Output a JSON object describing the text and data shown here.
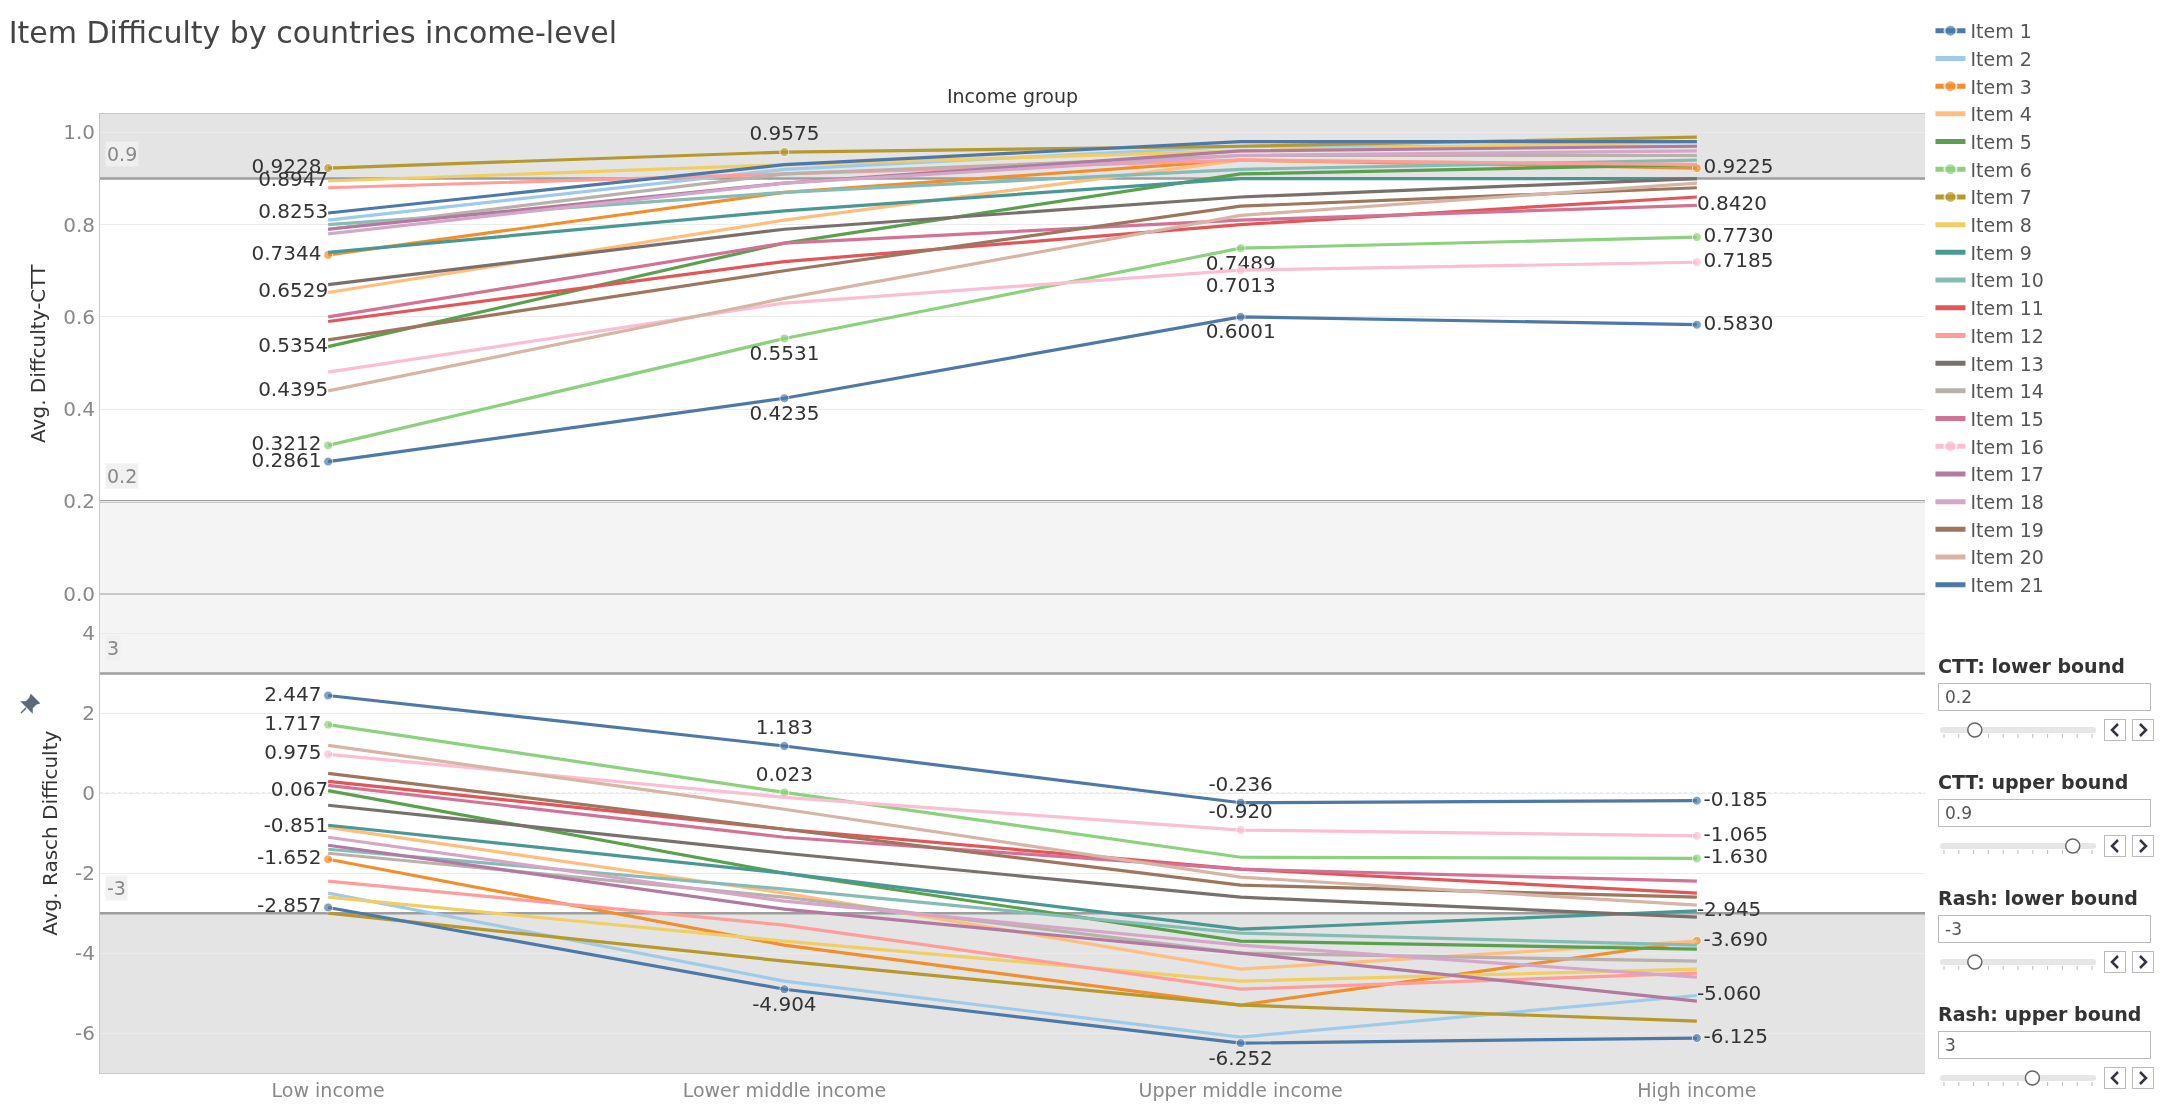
{
  "chart_data": [
    {
      "type": "line",
      "title": "Item Difficulty by countries income-level",
      "xlabel": "Income group",
      "ylabel": "Avg. Diffculty-CTT",
      "categories": [
        "Low income",
        "Lower middle income",
        "Upper middle income",
        "High income"
      ],
      "ylim": [
        0,
        1.04
      ],
      "yticks": [
        {
          "value": 0,
          "label": "0.0"
        },
        {
          "value": 0.2,
          "label": "0.2"
        },
        {
          "value": 0.4,
          "label": "0.4"
        },
        {
          "value": 0.6,
          "label": "0.6"
        },
        {
          "value": 0.8,
          "label": "0.8"
        },
        {
          "value": 1,
          "label": "1.0"
        }
      ],
      "grid": "y",
      "legend": "right",
      "tick_labels": "y",
      "annotations": [
        "CTT: lower bound",
        "CTT: upper bound"
      ],
      "ref_lines": [
        {
          "axis": "y",
          "value": 0.2,
          "label": "0.2"
        },
        {
          "axis": "y",
          "value": 0.9,
          "label": "0.9"
        }
      ],
      "bands": [
        {
          "axis": "y",
          "from": 0.9,
          "to": 1.04,
          "color": "#e4e4e4"
        },
        {
          "axis": "y",
          "from": 0,
          "to": 0.2,
          "color": "#f4f4f4"
        }
      ],
      "series": [
        {
          "name": "Item 1",
          "color": "#4e79a7",
          "marker": "circle",
          "values": [
            0.2861,
            0.4235,
            0.6001,
            0.583
          ],
          "value_labels": [
            "0.2861",
            "0.4235",
            "0.6001",
            "0.5830"
          ]
        },
        {
          "name": "Item 2",
          "color": "#a0cbe8",
          "values": [
            0.81,
            0.92,
            0.97,
            0.97
          ]
        },
        {
          "name": "Item 3",
          "color": "#f28e2b",
          "marker": "circle",
          "values": [
            0.7344,
            0.87,
            0.94,
            0.9225
          ],
          "value_labels": [
            "0.7344",
            null,
            null,
            "0.9225"
          ]
        },
        {
          "name": "Item 4",
          "color": "#ffbe7d",
          "values": [
            0.6529,
            0.81,
            0.94,
            0.93
          ],
          "value_labels": [
            "0.6529",
            null,
            null,
            null
          ]
        },
        {
          "name": "Item 5",
          "color": "#59a14f",
          "values": [
            0.5354,
            0.76,
            0.91,
            0.93
          ],
          "value_labels": [
            "0.5354",
            null,
            null,
            null
          ]
        },
        {
          "name": "Item 6",
          "color": "#8cd17d",
          "marker": "circle",
          "values": [
            0.3212,
            0.5531,
            0.7489,
            0.773
          ],
          "value_labels": [
            "0.3212",
            "0.5531",
            "0.7489",
            "0.7730"
          ]
        },
        {
          "name": "Item 7",
          "color": "#b6992d",
          "marker": "circle",
          "values": [
            0.9228,
            0.9575,
            0.97,
            0.99
          ],
          "value_labels": [
            "0.9228",
            "0.9575",
            null,
            null
          ]
        },
        {
          "name": "Item 8",
          "color": "#f1ce63",
          "values": [
            0.8947,
            0.93,
            0.96,
            0.98
          ],
          "value_labels": [
            "0.8947",
            null,
            null,
            null
          ]
        },
        {
          "name": "Item 9",
          "color": "#499894",
          "values": [
            0.74,
            0.83,
            0.9,
            0.9
          ]
        },
        {
          "name": "Item 10",
          "color": "#86bcb6",
          "values": [
            0.8,
            0.87,
            0.92,
            0.94
          ]
        },
        {
          "name": "Item 11",
          "color": "#e15759",
          "values": [
            0.59,
            0.72,
            0.8,
            0.86
          ]
        },
        {
          "name": "Item 12",
          "color": "#ff9d9a",
          "values": [
            0.88,
            0.91,
            0.94,
            0.93
          ]
        },
        {
          "name": "Item 13",
          "color": "#79706e",
          "values": [
            0.67,
            0.79,
            0.86,
            0.9
          ]
        },
        {
          "name": "Item 14",
          "color": "#bab0ac",
          "values": [
            0.79,
            0.91,
            0.95,
            0.95
          ]
        },
        {
          "name": "Item 15",
          "color": "#d37295",
          "values": [
            0.6,
            0.76,
            0.81,
            0.842
          ],
          "value_labels": [
            null,
            null,
            null,
            "0.8420"
          ]
        },
        {
          "name": "Item 16",
          "color": "#fabfd2",
          "marker": "circle",
          "values": [
            0.48,
            0.63,
            0.7013,
            0.7185
          ],
          "value_labels": [
            null,
            null,
            "0.7013",
            "0.7185"
          ]
        },
        {
          "name": "Item 17",
          "color": "#b07aa1",
          "values": [
            0.79,
            0.89,
            0.96,
            0.97
          ]
        },
        {
          "name": "Item 18",
          "color": "#d4a6c8",
          "values": [
            0.78,
            0.89,
            0.95,
            0.96
          ]
        },
        {
          "name": "Item 19",
          "color": "#9d7660",
          "values": [
            0.55,
            0.7,
            0.84,
            0.88
          ]
        },
        {
          "name": "Item 20",
          "color": "#d7b5a6",
          "values": [
            0.4395,
            0.64,
            0.82,
            0.89
          ],
          "value_labels": [
            "0.4395",
            null,
            null,
            null
          ]
        },
        {
          "name": "Item 21",
          "color": "#4e79a7",
          "values": [
            0.8253,
            0.93,
            0.98,
            0.98
          ],
          "value_labels": [
            "0.8253",
            null,
            null,
            null
          ]
        }
      ]
    },
    {
      "type": "line",
      "ylabel": "Avg. Rasch Difficulty",
      "categories": [
        "Low income",
        "Lower middle income",
        "Upper middle income",
        "High income"
      ],
      "ylim": [
        -7,
        5
      ],
      "yticks": [
        -6,
        -4,
        -2,
        0,
        2,
        4
      ],
      "grid": "y",
      "annotations": [
        "Rash: lower bound",
        "Rash: upper bound"
      ],
      "ref_lines": [
        {
          "axis": "y",
          "value": -3,
          "label": "-3"
        },
        {
          "axis": "y",
          "value": 3,
          "label": "3"
        },
        {
          "axis": "y",
          "value": 0,
          "label": null,
          "line_style": "dotted"
        }
      ],
      "bands": [
        {
          "axis": "y",
          "from": 3,
          "to": 5,
          "color": "#f4f4f4"
        },
        {
          "axis": "y",
          "from": -7,
          "to": -3,
          "color": "#e4e4e4"
        }
      ],
      "series": [
        {
          "name": "Item 1",
          "color": "#4e79a7",
          "marker": "circle",
          "values": [
            2.447,
            1.183,
            -0.236,
            -0.185
          ],
          "value_labels": [
            "2.447",
            "1.183",
            "-0.236",
            "-0.185"
          ]
        },
        {
          "name": "Item 2",
          "color": "#a0cbe8",
          "values": [
            -2.5,
            -4.7,
            -6.1,
            -5.06
          ],
          "value_labels": [
            null,
            null,
            null,
            "-5.060"
          ]
        },
        {
          "name": "Item 3",
          "color": "#f28e2b",
          "marker": "circle",
          "values": [
            -1.652,
            -3.8,
            -5.3,
            -3.69
          ],
          "value_labels": [
            "-1.652",
            null,
            null,
            "-3.690"
          ]
        },
        {
          "name": "Item 4",
          "color": "#ffbe7d",
          "values": [
            -0.851,
            -2.5,
            -4.4,
            -3.7
          ],
          "value_labels": [
            "-0.851",
            null,
            null,
            null
          ]
        },
        {
          "name": "Item 5",
          "color": "#59a14f",
          "values": [
            0.067,
            -2.0,
            -3.7,
            -3.9
          ],
          "value_labels": [
            "0.067",
            null,
            null,
            null
          ]
        },
        {
          "name": "Item 6",
          "color": "#8cd17d",
          "marker": "circle",
          "values": [
            1.717,
            0.023,
            -1.6,
            -1.63
          ],
          "value_labels": [
            "1.717",
            "0.023",
            null,
            "-1.630"
          ]
        },
        {
          "name": "Item 7",
          "color": "#b6992d",
          "values": [
            -3.0,
            -4.2,
            -5.3,
            -5.7
          ]
        },
        {
          "name": "Item 8",
          "color": "#f1ce63",
          "values": [
            -2.6,
            -3.7,
            -4.7,
            -4.4
          ]
        },
        {
          "name": "Item 9",
          "color": "#499894",
          "values": [
            -0.8,
            -2.0,
            -3.4,
            -2.945
          ],
          "value_labels": [
            null,
            null,
            null,
            "-2.945"
          ]
        },
        {
          "name": "Item 10",
          "color": "#86bcb6",
          "values": [
            -1.4,
            -2.4,
            -3.5,
            -3.8
          ]
        },
        {
          "name": "Item 11",
          "color": "#e15759",
          "values": [
            0.3,
            -0.9,
            -1.9,
            -2.5
          ]
        },
        {
          "name": "Item 12",
          "color": "#ff9d9a",
          "values": [
            -2.2,
            -3.3,
            -4.9,
            -4.5
          ]
        },
        {
          "name": "Item 13",
          "color": "#79706e",
          "values": [
            -0.3,
            -1.5,
            -2.6,
            -3.1
          ]
        },
        {
          "name": "Item 14",
          "color": "#bab0ac",
          "values": [
            -1.5,
            -2.6,
            -4.0,
            -4.2
          ]
        },
        {
          "name": "Item 15",
          "color": "#d37295",
          "values": [
            0.2,
            -1.1,
            -1.9,
            -2.2
          ]
        },
        {
          "name": "Item 16",
          "color": "#fabfd2",
          "marker": "circle",
          "values": [
            0.975,
            -0.1,
            -0.92,
            -1.065
          ],
          "value_labels": [
            "0.975",
            null,
            "-0.920",
            "-1.065"
          ]
        },
        {
          "name": "Item 17",
          "color": "#b07aa1",
          "values": [
            -1.3,
            -2.9,
            -4.0,
            -5.2
          ]
        },
        {
          "name": "Item 18",
          "color": "#d4a6c8",
          "values": [
            -1.1,
            -2.7,
            -3.8,
            -4.6
          ]
        },
        {
          "name": "Item 19",
          "color": "#9d7660",
          "values": [
            0.5,
            -0.9,
            -2.3,
            -2.6
          ]
        },
        {
          "name": "Item 20",
          "color": "#d7b5a6",
          "values": [
            1.2,
            -0.4,
            -2.1,
            -2.8
          ]
        },
        {
          "name": "Item 21",
          "color": "#4e79a7",
          "marker": "circle",
          "values": [
            -2.857,
            -4.904,
            -6.252,
            -6.125
          ],
          "value_labels": [
            "-2.857",
            "-4.904",
            "-6.252",
            "-6.125"
          ]
        }
      ]
    }
  ]
}
